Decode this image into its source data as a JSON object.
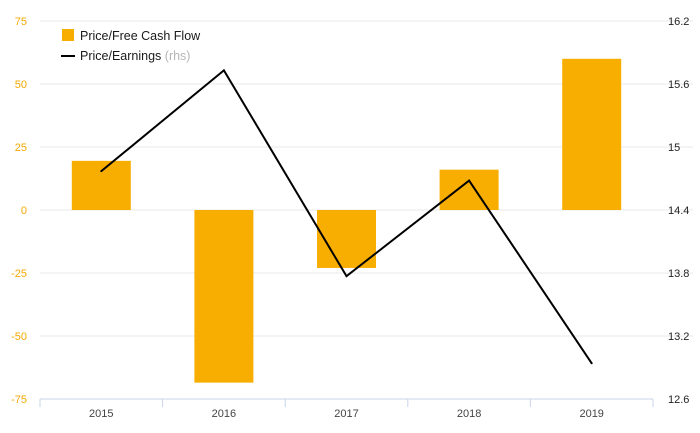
{
  "colors": {
    "bar": "#f7ae00",
    "line": "#000000",
    "left_tick_text": "#f5a800",
    "right_tick_text": "#222222",
    "grid": "#e8e8e8",
    "axis": "#c8d4e8"
  },
  "legend": {
    "bar_label": "Price/Free Cash Flow",
    "line_label": "Price/Earnings",
    "line_note": "(rhs)"
  },
  "chart_data": {
    "type": "bar",
    "title": "",
    "xlabel": "",
    "ylabel": "",
    "categories": [
      "2015",
      "2016",
      "2017",
      "2018",
      "2019"
    ],
    "grid": true,
    "legend_position": "top-left",
    "y_left": {
      "min": -75,
      "max": 75,
      "ticks": [
        "75",
        "50",
        "25",
        "0",
        "-25",
        "-50",
        "-75"
      ]
    },
    "y_right": {
      "min": 12.6,
      "max": 16.2,
      "ticks": [
        "16.2",
        "15.6",
        "15",
        "14.4",
        "13.8",
        "13.2",
        "12.6"
      ]
    },
    "series": [
      {
        "name": "Price/Free Cash Flow",
        "type": "bar",
        "axis": "left",
        "values": [
          19.5,
          -68.5,
          -23,
          16,
          60
        ]
      },
      {
        "name": "Price/Earnings",
        "type": "line",
        "axis": "right",
        "values": [
          14.77,
          15.73,
          13.77,
          14.68,
          12.94
        ]
      }
    ]
  }
}
